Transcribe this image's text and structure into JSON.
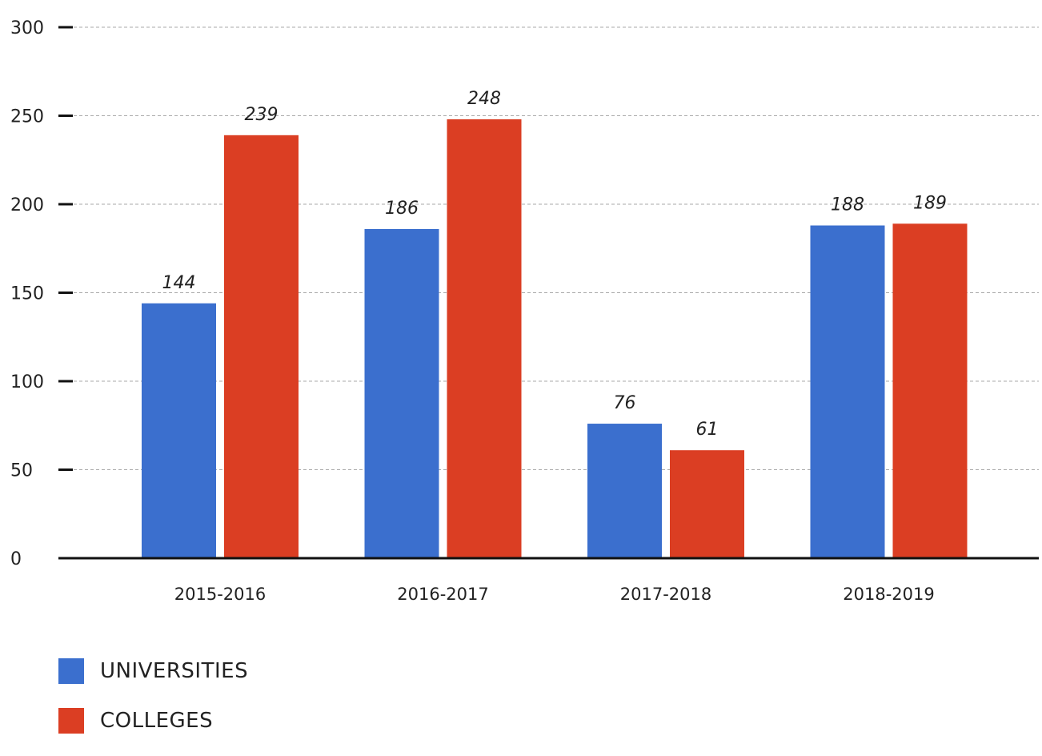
{
  "chart_data": {
    "type": "bar",
    "categories": [
      "2015-2016",
      "2016-2017",
      "2017-2018",
      "2018-2019"
    ],
    "series": [
      {
        "name": "UNIVERSITIES",
        "values": [
          144,
          186,
          76,
          188
        ],
        "color": "#3B6FCE"
      },
      {
        "name": "COLLEGES",
        "values": [
          239,
          248,
          61,
          189
        ],
        "color": "#DB3E23"
      }
    ],
    "ylim": [
      0,
      300
    ],
    "yticks": [
      "0",
      "50",
      "100",
      "150",
      "200",
      "250",
      "300"
    ],
    "grid": true,
    "legend_position": "bottom-left",
    "title": "",
    "xlabel": "",
    "ylabel": ""
  },
  "legend": [
    {
      "label": "UNIVERSITIES",
      "color": "#3B6FCE"
    },
    {
      "label": "COLLEGES",
      "color": "#DB3E23"
    }
  ]
}
